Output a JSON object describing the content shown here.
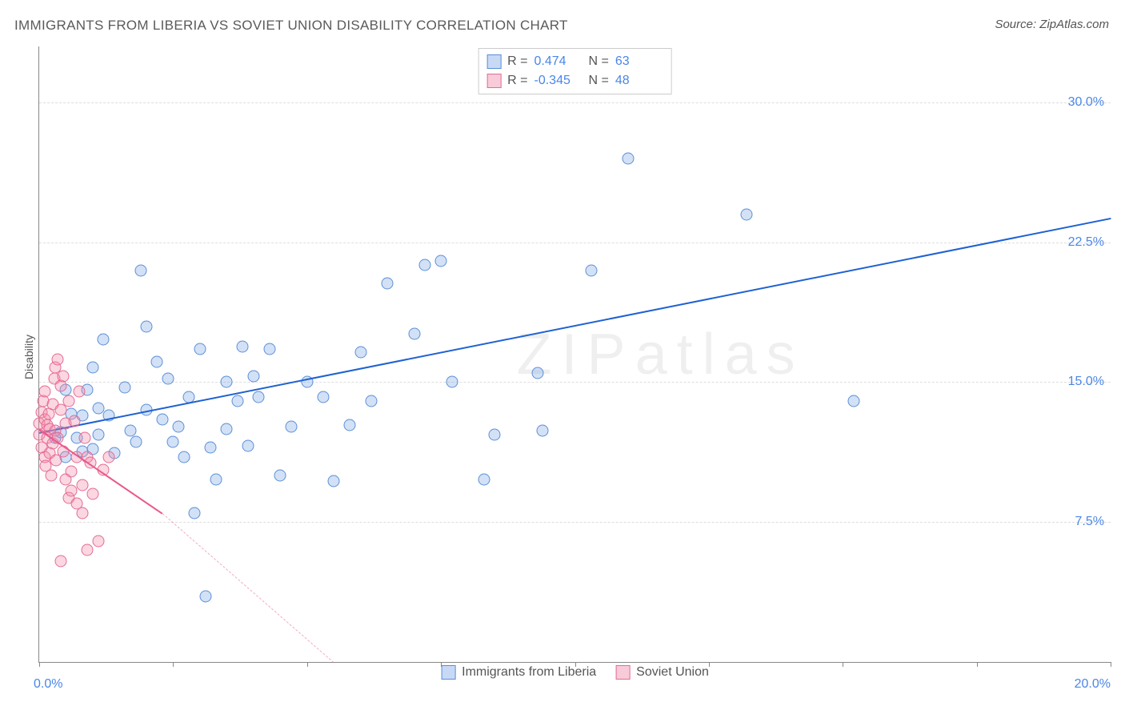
{
  "title": "IMMIGRANTS FROM LIBERIA VS SOVIET UNION DISABILITY CORRELATION CHART",
  "source": "Source: ZipAtlas.com",
  "watermark": "ZIPatlas",
  "ylabel": "Disability",
  "chart": {
    "type": "scatter",
    "xlim": [
      0.0,
      20.0
    ],
    "ylim": [
      0.0,
      33.0
    ],
    "x_label_min": "0.0%",
    "x_label_max": "20.0%",
    "ytick_values": [
      7.5,
      15.0,
      22.5,
      30.0
    ],
    "ytick_labels": [
      "7.5%",
      "15.0%",
      "22.5%",
      "30.0%"
    ],
    "xtick_values": [
      0.0,
      2.5,
      5.0,
      7.5,
      10.0,
      12.5,
      15.0,
      17.5,
      20.0
    ],
    "grid_color": "#dddddd",
    "axis_color": "#888888",
    "background_color": "#ffffff",
    "marker_size": 15,
    "label_fontsize": 16,
    "label_color": "#4a86e8",
    "legend_top": [
      {
        "swatch": "blue",
        "r_label": "R =",
        "r": "0.474",
        "n_label": "N =",
        "n": "63"
      },
      {
        "swatch": "pink",
        "r_label": "R =",
        "r": "-0.345",
        "n_label": "N =",
        "n": "48"
      }
    ],
    "legend_bottom": [
      {
        "swatch": "blue",
        "label": "Immigrants from Liberia"
      },
      {
        "swatch": "pink",
        "label": "Soviet Union"
      }
    ],
    "series": [
      {
        "name": "Immigrants from Liberia",
        "color": "blue",
        "fill": "rgba(130,170,230,0.35)",
        "stroke": "#5b8fd8",
        "trend": {
          "x1": 0.0,
          "y1": 12.3,
          "x2": 20.0,
          "y2": 23.8,
          "color": "#1e62d0",
          "width": 2
        },
        "points": [
          [
            0.3,
            12.0
          ],
          [
            0.4,
            12.3
          ],
          [
            0.5,
            11.0
          ],
          [
            0.5,
            14.6
          ],
          [
            0.6,
            13.3
          ],
          [
            0.7,
            12.0
          ],
          [
            0.8,
            11.3
          ],
          [
            0.8,
            13.2
          ],
          [
            0.9,
            14.6
          ],
          [
            1.0,
            11.4
          ],
          [
            1.0,
            15.8
          ],
          [
            1.1,
            13.6
          ],
          [
            1.1,
            12.2
          ],
          [
            1.2,
            17.3
          ],
          [
            1.3,
            13.2
          ],
          [
            1.4,
            11.2
          ],
          [
            1.6,
            14.7
          ],
          [
            1.7,
            12.4
          ],
          [
            1.8,
            11.8
          ],
          [
            1.9,
            21.0
          ],
          [
            2.0,
            13.5
          ],
          [
            2.0,
            18.0
          ],
          [
            2.2,
            16.1
          ],
          [
            2.3,
            13.0
          ],
          [
            2.4,
            15.2
          ],
          [
            2.5,
            11.8
          ],
          [
            2.6,
            12.6
          ],
          [
            2.7,
            11.0
          ],
          [
            2.8,
            14.2
          ],
          [
            2.9,
            8.0
          ],
          [
            3.0,
            16.8
          ],
          [
            3.1,
            3.5
          ],
          [
            3.2,
            11.5
          ],
          [
            3.3,
            9.8
          ],
          [
            3.5,
            15.0
          ],
          [
            3.5,
            12.5
          ],
          [
            3.7,
            14.0
          ],
          [
            3.8,
            16.9
          ],
          [
            3.9,
            11.6
          ],
          [
            4.0,
            15.3
          ],
          [
            4.1,
            14.2
          ],
          [
            4.3,
            16.8
          ],
          [
            4.5,
            10.0
          ],
          [
            4.7,
            12.6
          ],
          [
            5.0,
            15.0
          ],
          [
            5.3,
            14.2
          ],
          [
            5.5,
            9.7
          ],
          [
            5.8,
            12.7
          ],
          [
            6.0,
            16.6
          ],
          [
            6.2,
            14.0
          ],
          [
            6.5,
            20.3
          ],
          [
            7.0,
            17.6
          ],
          [
            7.2,
            21.3
          ],
          [
            7.5,
            21.5
          ],
          [
            7.7,
            15.0
          ],
          [
            8.3,
            9.8
          ],
          [
            8.5,
            12.2
          ],
          [
            9.3,
            15.5
          ],
          [
            9.4,
            12.4
          ],
          [
            11.0,
            27.0
          ],
          [
            13.2,
            24.0
          ],
          [
            15.2,
            14.0
          ],
          [
            10.3,
            21.0
          ]
        ]
      },
      {
        "name": "Soviet Union",
        "color": "pink",
        "fill": "rgba(240,140,170,0.35)",
        "stroke": "#e76a94",
        "trend": {
          "x1": 0.0,
          "y1": 12.5,
          "x2": 2.3,
          "y2": 8.0,
          "color": "#e85a8a",
          "width": 2,
          "dash_to": {
            "x": 5.5,
            "y": 0.0
          }
        },
        "points": [
          [
            0.0,
            12.2
          ],
          [
            0.0,
            12.8
          ],
          [
            0.05,
            13.4
          ],
          [
            0.05,
            11.5
          ],
          [
            0.08,
            14.0
          ],
          [
            0.1,
            11.0
          ],
          [
            0.1,
            13.0
          ],
          [
            0.1,
            14.5
          ],
          [
            0.12,
            10.5
          ],
          [
            0.15,
            12.0
          ],
          [
            0.15,
            12.7
          ],
          [
            0.18,
            13.3
          ],
          [
            0.2,
            11.2
          ],
          [
            0.2,
            12.5
          ],
          [
            0.22,
            10.0
          ],
          [
            0.25,
            13.8
          ],
          [
            0.25,
            11.7
          ],
          [
            0.28,
            15.2
          ],
          [
            0.3,
            12.4
          ],
          [
            0.3,
            15.8
          ],
          [
            0.32,
            10.8
          ],
          [
            0.35,
            16.2
          ],
          [
            0.35,
            12.0
          ],
          [
            0.4,
            13.5
          ],
          [
            0.4,
            14.8
          ],
          [
            0.45,
            11.3
          ],
          [
            0.45,
            15.3
          ],
          [
            0.5,
            9.8
          ],
          [
            0.5,
            12.8
          ],
          [
            0.55,
            8.8
          ],
          [
            0.55,
            14.0
          ],
          [
            0.6,
            10.2
          ],
          [
            0.6,
            9.2
          ],
          [
            0.65,
            12.9
          ],
          [
            0.7,
            11.0
          ],
          [
            0.7,
            8.5
          ],
          [
            0.75,
            14.5
          ],
          [
            0.8,
            9.5
          ],
          [
            0.8,
            8.0
          ],
          [
            0.85,
            12.0
          ],
          [
            0.9,
            11.0
          ],
          [
            0.9,
            6.0
          ],
          [
            0.95,
            10.7
          ],
          [
            1.0,
            9.0
          ],
          [
            1.1,
            6.5
          ],
          [
            1.2,
            10.3
          ],
          [
            1.3,
            11.0
          ],
          [
            0.4,
            5.4
          ]
        ]
      }
    ]
  }
}
